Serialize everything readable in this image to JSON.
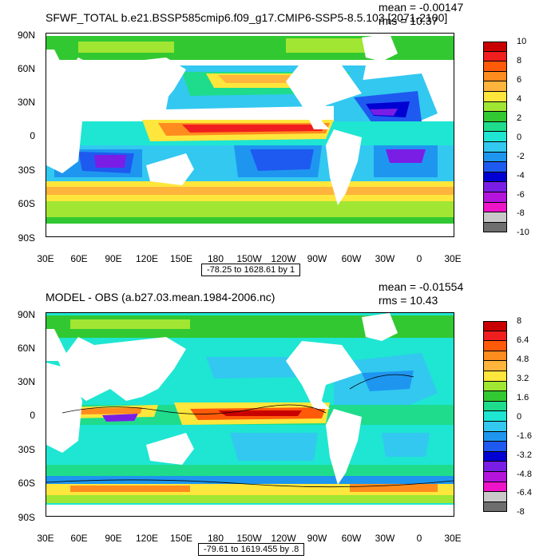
{
  "panels": [
    {
      "title": "SFWF_TOTAL b.e21.BSSP585cmip6.f09_g17.CMIP6-SSP5-8.5.103 [2071-2100]",
      "mean_text": "mean = -0.00147",
      "rms_text": "rms = 10.37",
      "range_text": "-78.25 to 1628.61 by 1",
      "lat_labels": [
        "90N",
        "60N",
        "30N",
        "0",
        "30S",
        "60S",
        "90S"
      ],
      "lon_labels": [
        "30E",
        "60E",
        "90E",
        "120E",
        "150E",
        "180",
        "150W",
        "120W",
        "90W",
        "60W",
        "30W",
        "0",
        "30E"
      ],
      "colorbar_labels": [
        "10",
        "8",
        "6",
        "4",
        "2",
        "0",
        "-2",
        "-4",
        "-6",
        "-8",
        "-10"
      ],
      "colorbar_colors": [
        "#c80000",
        "#f01e1e",
        "#ff5a0a",
        "#ff8c1e",
        "#ffb43c",
        "#ffe63c",
        "#a0e632",
        "#32c832",
        "#1edc8c",
        "#1ee6d2",
        "#32c8f0",
        "#1e96f0",
        "#1e5af0",
        "#0000d2",
        "#7a1ee6",
        "#b414dc",
        "#f014c8",
        "#c8c8c8",
        "#6e6e6e"
      ]
    },
    {
      "title": "MODEL - OBS (a.b27.03.mean.1984-2006.nc)",
      "mean_text": "mean = -0.01554",
      "rms_text": "rms = 10.43",
      "range_text": "-79.61 to 1619.455 by .8",
      "lat_labels": [
        "90N",
        "60N",
        "30N",
        "0",
        "30S",
        "60S",
        "90S"
      ],
      "lon_labels": [
        "30E",
        "60E",
        "90E",
        "120E",
        "150E",
        "180",
        "150W",
        "120W",
        "90W",
        "60W",
        "30W",
        "0",
        "30E"
      ],
      "colorbar_labels": [
        "8",
        "6.4",
        "4.8",
        "3.2",
        "1.6",
        "0",
        "-1.6",
        "-3.2",
        "-4.8",
        "-6.4",
        "-8"
      ],
      "colorbar_colors": [
        "#c80000",
        "#f01e1e",
        "#ff5a0a",
        "#ff8c1e",
        "#ffb43c",
        "#ffe63c",
        "#a0e632",
        "#32c832",
        "#1edc8c",
        "#1ee6d2",
        "#32c8f0",
        "#1e96f0",
        "#1e5af0",
        "#0000d2",
        "#7a1ee6",
        "#b414dc",
        "#f014c8",
        "#c8c8c8",
        "#6e6e6e"
      ]
    }
  ]
}
